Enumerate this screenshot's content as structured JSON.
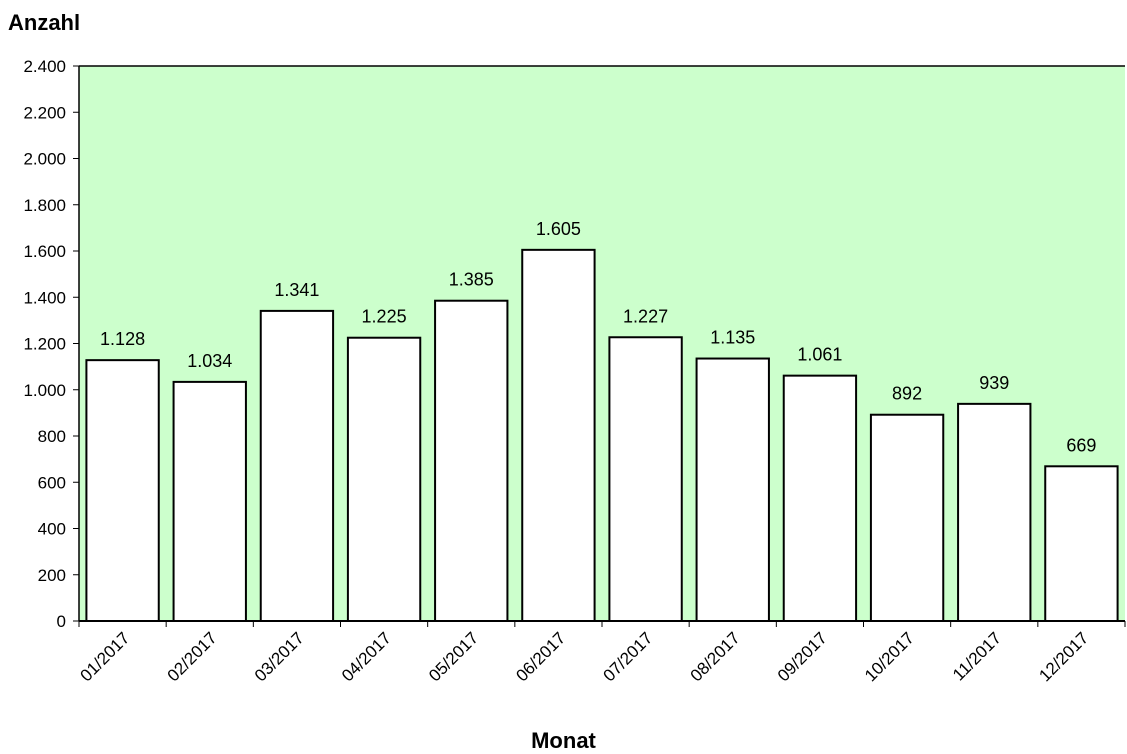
{
  "chart_data": {
    "type": "bar",
    "xlabel": "Monat",
    "ylabel": "Anzahl",
    "categories": [
      "01/2017",
      "02/2017",
      "03/2017",
      "04/2017",
      "05/2017",
      "06/2017",
      "07/2017",
      "08/2017",
      "09/2017",
      "10/2017",
      "11/2017",
      "12/2017"
    ],
    "values": [
      1128,
      1034,
      1341,
      1225,
      1385,
      1605,
      1227,
      1135,
      1061,
      892,
      939,
      669
    ],
    "value_labels": [
      "1.128",
      "1.034",
      "1.341",
      "1.225",
      "1.385",
      "1.605",
      "1.227",
      "1.135",
      "1.061",
      "892",
      "939",
      "669"
    ],
    "ylim": [
      0,
      2400
    ],
    "yticks": [
      0,
      200,
      400,
      600,
      800,
      1000,
      1200,
      1400,
      1600,
      1800,
      2000,
      2200,
      2400
    ],
    "ytick_labels": [
      "0",
      "200",
      "400",
      "600",
      "800",
      "1.000",
      "1.200",
      "1.400",
      "1.600",
      "1.800",
      "2.000",
      "2.200",
      "2.400"
    ],
    "grid": false,
    "legend": false,
    "plot_background": "#ccffcc",
    "bar_fill": "#ffffff",
    "bar_stroke": "#000000"
  }
}
